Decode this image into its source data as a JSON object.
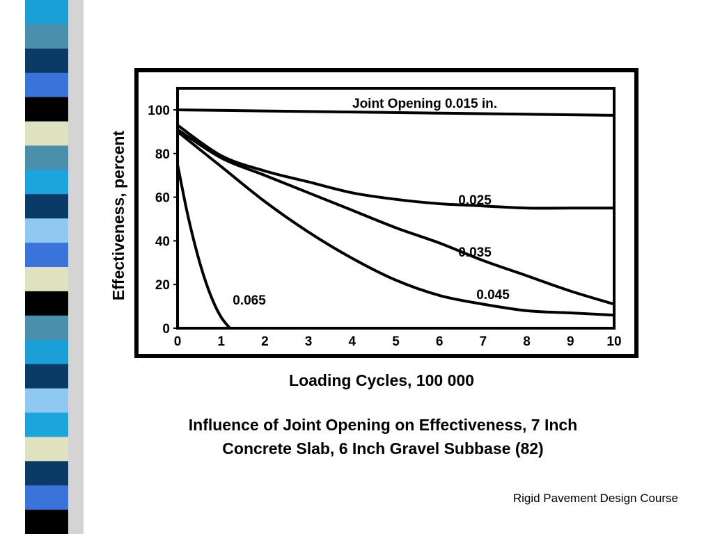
{
  "slide": {
    "caption_line1": "Influence of Joint Opening on Effectiveness, 7 Inch",
    "caption_line2": "Concrete Slab, 6 Inch Gravel Subbase (82)",
    "footer": "Rigid Pavement Design Course"
  },
  "stripe_colors": [
    "#1a9fd6",
    "#4a8fab",
    "#0a3a66",
    "#3a73d9",
    "#000000",
    "#e0e2bf",
    "#4a8fab",
    "#1aa6dc",
    "#0a3a66",
    "#8fc8f0",
    "#3a73d9",
    "#e0e2bf",
    "#000000",
    "#4a8fab",
    "#1a9fd6",
    "#0a3a66",
    "#8fc8f0",
    "#1aa6dc",
    "#e0e2bf",
    "#0a3a66",
    "#3a73d9",
    "#000000"
  ],
  "chart_data": {
    "type": "line",
    "xlabel": "Loading Cycles,  100 000",
    "ylabel": "Effectiveness, percent",
    "xlim": [
      0,
      10
    ],
    "ylim": [
      0,
      100
    ],
    "x_ticks": [
      "0",
      "1",
      "2",
      "3",
      "4",
      "5",
      "6",
      "7",
      "8",
      "9",
      "10"
    ],
    "y_ticks": [
      "0",
      "20",
      "40",
      "60",
      "80",
      "100"
    ],
    "grid": false,
    "series": [
      {
        "name": "Joint Opening 0.015 in.",
        "x": [
          0,
          2,
          4,
          6,
          8,
          10
        ],
        "y": [
          100,
          99.5,
          99,
          98.5,
          98,
          97.5
        ]
      },
      {
        "name": "0.025",
        "x": [
          0,
          1,
          2,
          3,
          4,
          5,
          6,
          7,
          8,
          9,
          10
        ],
        "y": [
          93,
          79,
          72,
          67,
          62,
          59,
          57,
          56,
          55,
          55,
          55
        ]
      },
      {
        "name": "0.035",
        "x": [
          0,
          1,
          2,
          3,
          4,
          5,
          6,
          7,
          8,
          9,
          10
        ],
        "y": [
          91,
          78,
          70,
          62,
          54,
          46,
          39,
          31,
          24,
          17,
          11
        ]
      },
      {
        "name": "0.045",
        "x": [
          0,
          1,
          2,
          3,
          4,
          5,
          6,
          7,
          8,
          9,
          10
        ],
        "y": [
          90,
          74,
          58,
          44,
          32,
          22,
          15,
          11,
          8,
          7,
          6
        ]
      },
      {
        "name": "0.065",
        "x": [
          0,
          0.2,
          0.4,
          0.6,
          0.8,
          1.0,
          1.2
        ],
        "y": [
          75,
          55,
          38,
          24,
          13,
          5,
          0
        ]
      }
    ]
  }
}
